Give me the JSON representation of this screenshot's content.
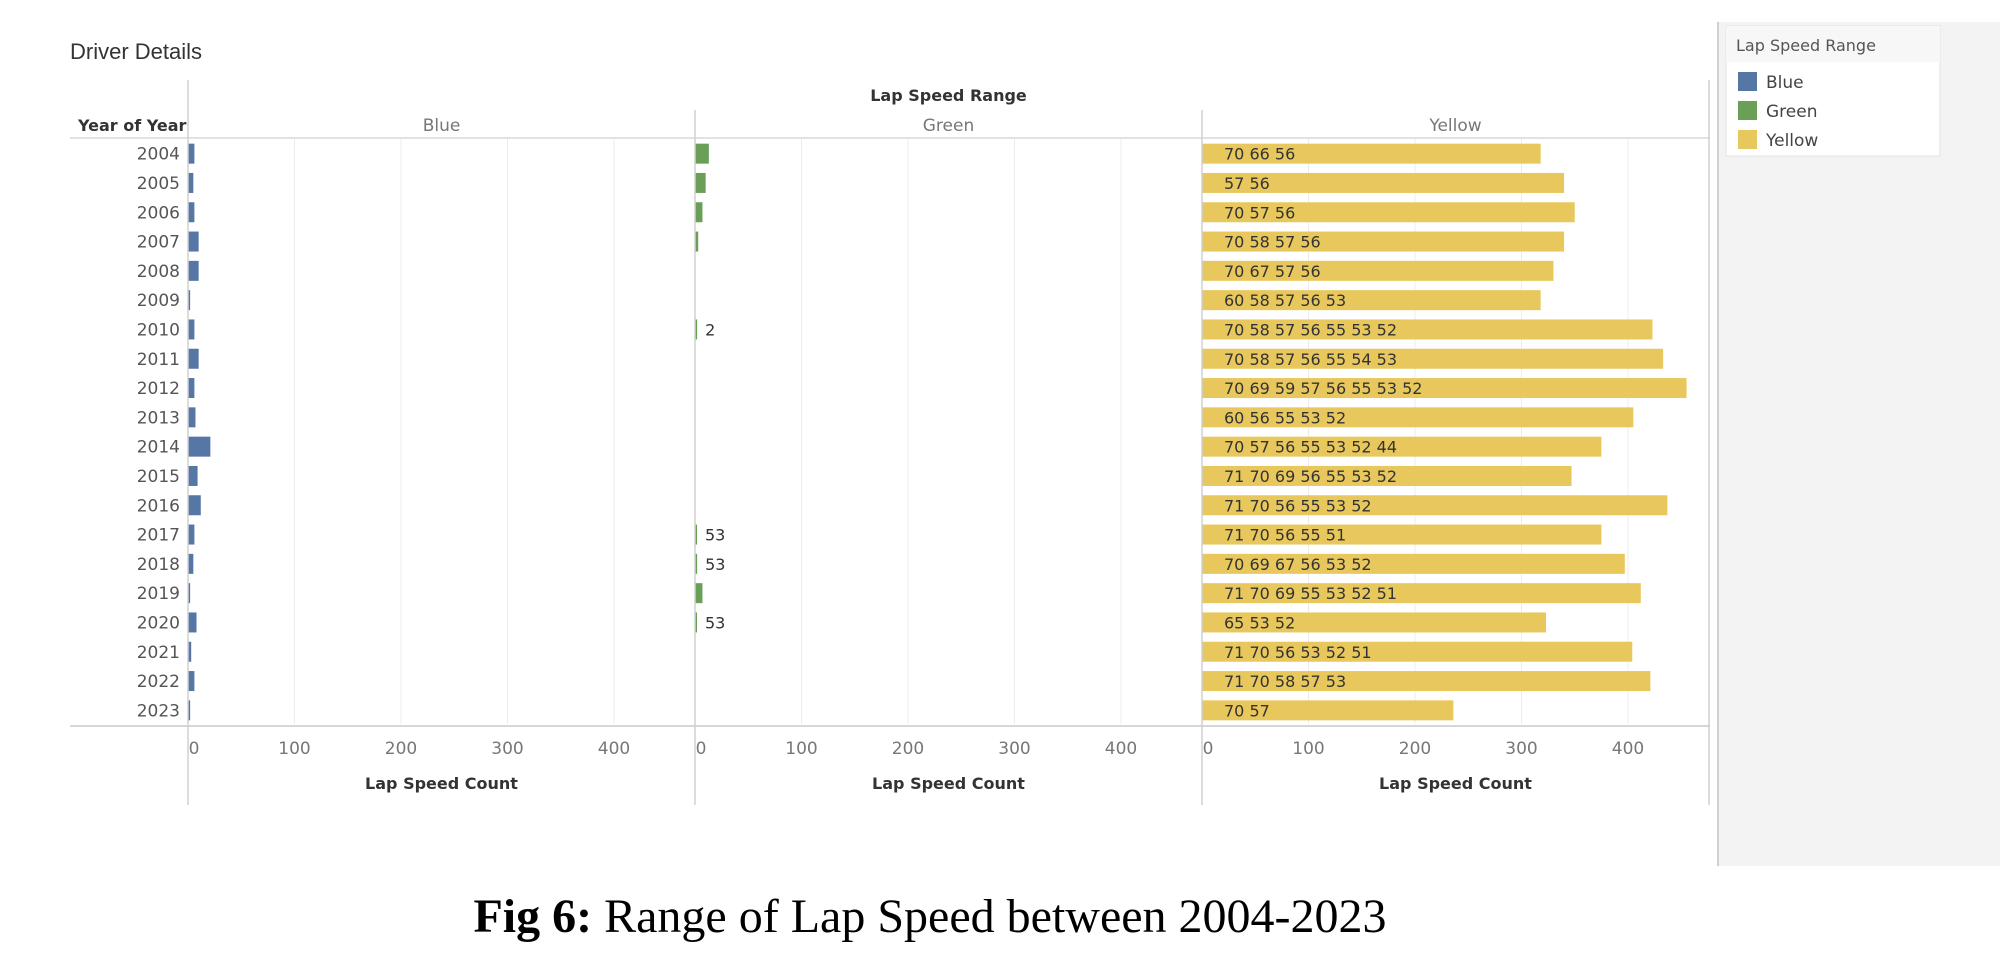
{
  "sheet_title": "Driver Details",
  "caption": {
    "bold": "Fig 6:",
    "text": " Range of Lap Speed between 2004-2023"
  },
  "legend": {
    "title": "Lap Speed Range",
    "items": [
      {
        "label": "Blue",
        "color": "#5677a6"
      },
      {
        "label": "Green",
        "color": "#6a9f58"
      },
      {
        "label": "Yellow",
        "color": "#e8c85c"
      }
    ]
  },
  "chart_data": {
    "type": "bar",
    "orientation": "horizontal",
    "column_header": "Lap Speed Range",
    "row_header": "Year of Year",
    "xlabel": "Lap Speed Count",
    "xlim": [
      0,
      450
    ],
    "ticks": [
      "0",
      "100",
      "200",
      "300",
      "400"
    ],
    "tick_values": [
      0,
      100,
      200,
      300,
      400
    ],
    "categories": [
      "2004",
      "2005",
      "2006",
      "2007",
      "2008",
      "2009",
      "2010",
      "2011",
      "2012",
      "2013",
      "2014",
      "2015",
      "2016",
      "2017",
      "2018",
      "2019",
      "2020",
      "2021",
      "2022",
      "2023"
    ],
    "series": [
      {
        "name": "Blue",
        "color": "#5677a6",
        "values": [
          6,
          5,
          6,
          10,
          10,
          2,
          6,
          10,
          6,
          7,
          21,
          9,
          12,
          6,
          5,
          2,
          8,
          3,
          6,
          2
        ],
        "labels": [
          "",
          "",
          "",
          "",
          "",
          "",
          "",
          "",
          "",
          "",
          "",
          "",
          "",
          "",
          "",
          "",
          "",
          "",
          "",
          ""
        ]
      },
      {
        "name": "Green",
        "color": "#6a9f58",
        "values": [
          13,
          10,
          7,
          3,
          0,
          0,
          2,
          0,
          0,
          0,
          0,
          0,
          0,
          1,
          2,
          7,
          1,
          0,
          0,
          0
        ],
        "labels": [
          "",
          "",
          "",
          "",
          "",
          "",
          "2",
          "",
          "",
          "",
          "",
          "",
          "",
          "53",
          "53",
          "",
          "53",
          "",
          "",
          ""
        ]
      },
      {
        "name": "Yellow",
        "color": "#e8c85c",
        "values": [
          318,
          340,
          350,
          340,
          330,
          318,
          423,
          433,
          455,
          405,
          375,
          347,
          437,
          375,
          397,
          412,
          323,
          404,
          421,
          236
        ],
        "labels": [
          "70      66                  56",
          "                                     57 56",
          "70                         57  56",
          "   70                  58  57  56",
          "70        67                57    56",
          "      60   58  57  56       53",
          "70                   58 57 56   55    53  52",
          "70                      58 57   56    55   54 53",
          "70 69                 59     57     56      55       53   52",
          "                 60              56      55     53   52",
          "  70                  57 56 55      53  52     44",
          "71  70  69                56   55    53  52",
          "71   70                         56     55    53   52",
          "71   70                  56   55                51",
          "    70 69   67              56           53     52",
          "71  70   69                      55     53   52   51",
          "        65                     53   52",
          "   71     70                       56      53   52 51",
          "71    70                 58   57        53",
          "  70            57"
        ]
      }
    ],
    "grid": true
  }
}
